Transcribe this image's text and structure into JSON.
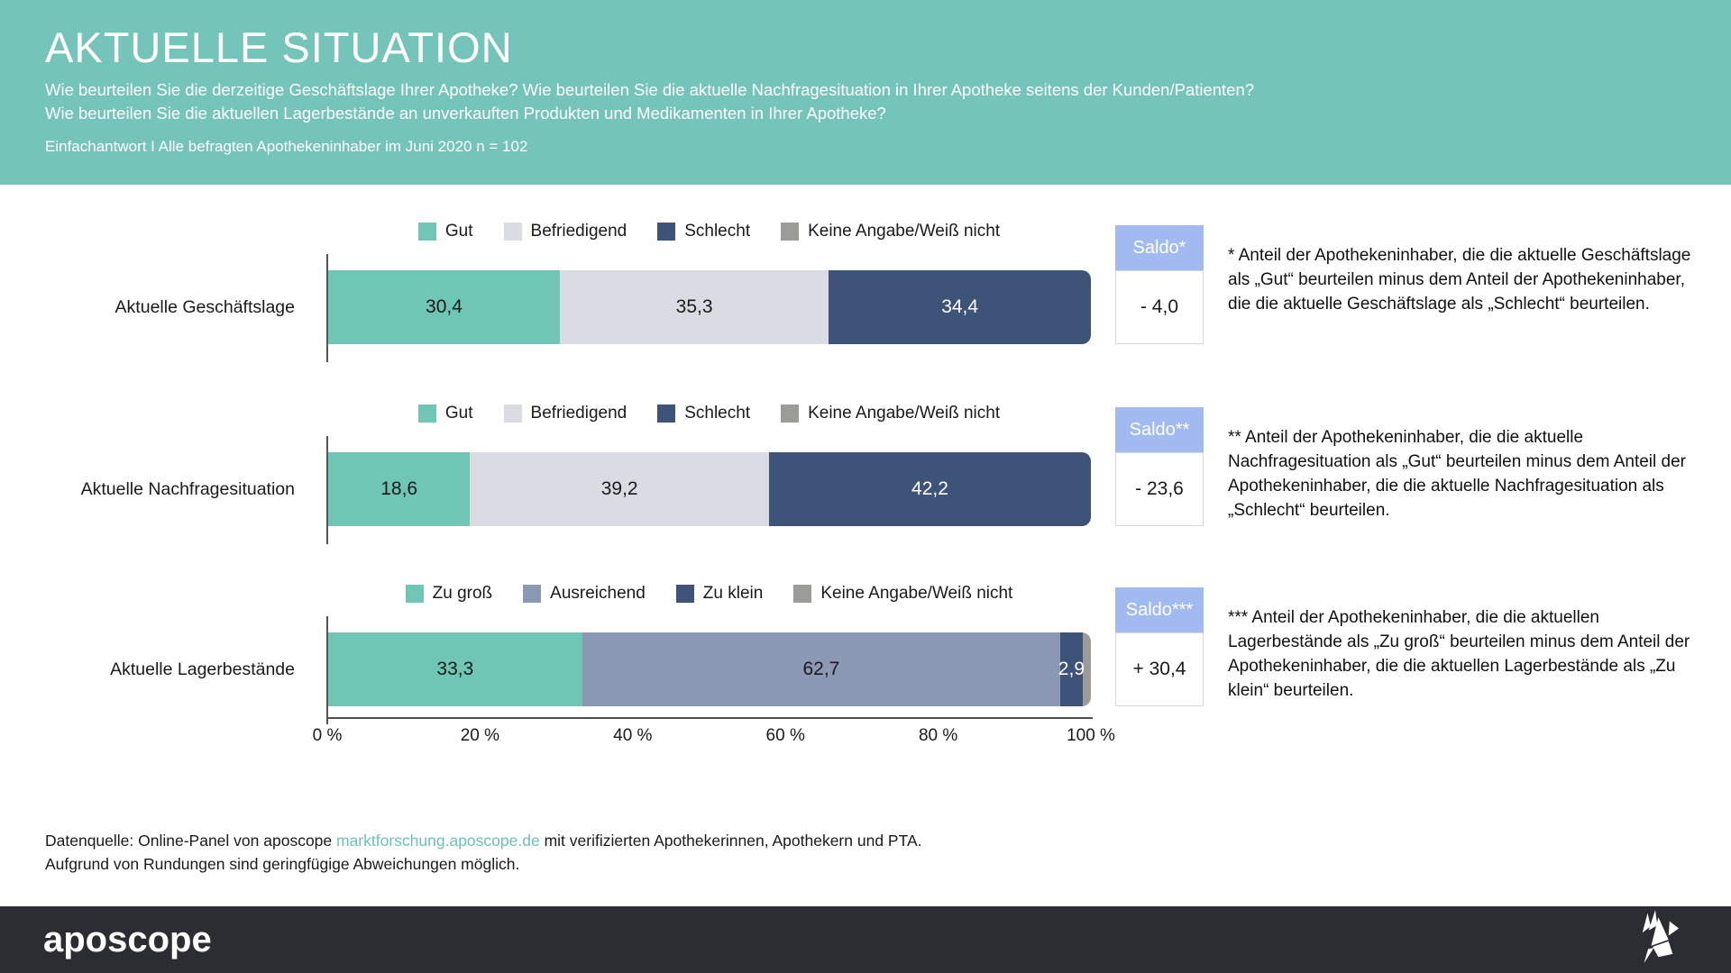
{
  "header": {
    "title": "AKTUELLE SITUATION",
    "subtitle_line1": "Wie beurteilen Sie die derzeitige Geschäftslage Ihrer Apotheke? Wie beurteilen Sie die aktuelle Nachfragesituation in Ihrer Apotheke seitens der Kunden/Patienten?",
    "subtitle_line2": "Wie beurteilen Sie die aktuellen Lagerbestände an unverkauften Produkten und Medikamenten in Ihrer Apotheke?",
    "meta": "Einfachantwort I Alle befragten Apothekeninhaber im Juni 2020 n = 102"
  },
  "colors": {
    "header_teal": "#74C4B9",
    "bar_teal": "#70C6B4",
    "bar_lightgray": "#D9DCE3",
    "bar_navy": "#3D5377",
    "bar_slate": "#8B99B5",
    "bar_gray": "#9B9B98",
    "saldo_blue": "#A1BBF0",
    "brandbar_dark": "#2B2D33",
    "link_teal": "#6CC2B5"
  },
  "charts": [
    {
      "label": "Aktuelle Geschäftslage",
      "legend": [
        {
          "label": "Gut",
          "color": "#70C6B4"
        },
        {
          "label": "Befriedigend",
          "color": "#D9DCE3"
        },
        {
          "label": "Schlecht",
          "color": "#3D5377"
        },
        {
          "label": "Keine Angabe/Weiß nicht",
          "color": "#9B9B98"
        }
      ],
      "segments": [
        {
          "label": "30,4",
          "pct": 30.4,
          "color": "#70C6B4",
          "text": "#1A1A1A"
        },
        {
          "label": "35,3",
          "pct": 35.3,
          "color": "#D9DCE3",
          "text": "#1A1A1A"
        },
        {
          "label": "34,4",
          "pct": 34.4,
          "color": "#3D5377",
          "text": "#FFFFFF"
        }
      ],
      "saldo_label": "Saldo*",
      "saldo_value": "- 4,0",
      "annotation": "* Anteil der Apothekeninhaber, die die aktuelle Geschäftslage als „Gut“ beurteilen minus dem Anteil der Apothekeninhaber, die die aktuelle Geschäftslage als „Schlecht“ beurteilen."
    },
    {
      "label": "Aktuelle Nachfragesituation",
      "legend": [
        {
          "label": "Gut",
          "color": "#70C6B4"
        },
        {
          "label": "Befriedigend",
          "color": "#D9DCE3"
        },
        {
          "label": "Schlecht",
          "color": "#3D5377"
        },
        {
          "label": "Keine Angabe/Weiß nicht",
          "color": "#9B9B98"
        }
      ],
      "segments": [
        {
          "label": "18,6",
          "pct": 18.6,
          "color": "#70C6B4",
          "text": "#1A1A1A"
        },
        {
          "label": "39,2",
          "pct": 39.2,
          "color": "#D9DCE3",
          "text": "#1A1A1A"
        },
        {
          "label": "42,2",
          "pct": 42.2,
          "color": "#3D5377",
          "text": "#FFFFFF"
        }
      ],
      "saldo_label": "Saldo**",
      "saldo_value": "- 23,6",
      "annotation": "** Anteil der Apothekeninhaber, die die aktuelle Nachfragesituation als „Gut“ beurteilen minus dem Anteil der Apothekeninhaber, die die aktuelle Nachfragesituation als „Schlecht“ beurteilen."
    },
    {
      "label": "Aktuelle Lagerbestände",
      "legend": [
        {
          "label": "Zu groß",
          "color": "#70C6B4"
        },
        {
          "label": "Ausreichend",
          "color": "#8B99B5"
        },
        {
          "label": "Zu klein",
          "color": "#3D5377"
        },
        {
          "label": "Keine Angabe/Weiß nicht",
          "color": "#9B9B98"
        }
      ],
      "segments": [
        {
          "label": "33,3",
          "pct": 33.3,
          "color": "#70C6B4",
          "text": "#1A1A1A"
        },
        {
          "label": "62,7",
          "pct": 62.7,
          "color": "#8B99B5",
          "text": "#1A1A1A"
        },
        {
          "label": "2,9",
          "pct": 2.9,
          "color": "#3D5377",
          "text": "#FFFFFF"
        },
        {
          "label": "",
          "pct": 1.1,
          "color": "#9B9B98",
          "text": "#1A1A1A"
        }
      ],
      "saldo_label": "Saldo***",
      "saldo_value": "+ 30,4",
      "annotation": "*** Anteil der Apothekeninhaber, die die aktuellen Lagerbestände als „Zu groß“ beurteilen minus dem Anteil der Apothekeninhaber, die die aktuellen Lagerbestände als „Zu klein“ beurteilen."
    }
  ],
  "axis": {
    "ticks": [
      "0 %",
      "20 %",
      "40 %",
      "60 %",
      "80 %",
      "100 %"
    ]
  },
  "chart_data": [
    {
      "type": "bar",
      "orientation": "horizontal_stacked",
      "title": "Aktuelle Geschäftslage",
      "categories": [
        "Gut",
        "Befriedigend",
        "Schlecht",
        "Keine Angabe/Weiß nicht"
      ],
      "values": [
        30.4,
        35.3,
        34.4,
        0
      ],
      "saldo": -4.0,
      "xlim": [
        0,
        100
      ],
      "x_ticks": [
        "0 %",
        "20 %",
        "40 %",
        "60 %",
        "80 %",
        "100 %"
      ]
    },
    {
      "type": "bar",
      "orientation": "horizontal_stacked",
      "title": "Aktuelle Nachfragesituation",
      "categories": [
        "Gut",
        "Befriedigend",
        "Schlecht",
        "Keine Angabe/Weiß nicht"
      ],
      "values": [
        18.6,
        39.2,
        42.2,
        0
      ],
      "saldo": -23.6,
      "xlim": [
        0,
        100
      ],
      "x_ticks": [
        "0 %",
        "20 %",
        "40 %",
        "60 %",
        "80 %",
        "100 %"
      ]
    },
    {
      "type": "bar",
      "orientation": "horizontal_stacked",
      "title": "Aktuelle Lagerbestände",
      "categories": [
        "Zu groß",
        "Ausreichend",
        "Zu klein",
        "Keine Angabe/Weiß nicht"
      ],
      "values": [
        33.3,
        62.7,
        2.9,
        1.1
      ],
      "saldo": 30.4,
      "xlim": [
        0,
        100
      ],
      "x_ticks": [
        "0 %",
        "20 %",
        "40 %",
        "60 %",
        "80 %",
        "100 %"
      ]
    }
  ],
  "footer": {
    "source_prefix": "Datenquelle: Online-Panel von aposcope ",
    "source_link": "marktforschung.aposcope.de",
    "source_suffix": " mit verifizierten Apothekerinnen, Apothekern und PTA.",
    "rounding_note": "Aufgrund von Rundungen sind geringfügige Abweichungen möglich."
  },
  "brand": {
    "logo_text": "aposcope"
  }
}
